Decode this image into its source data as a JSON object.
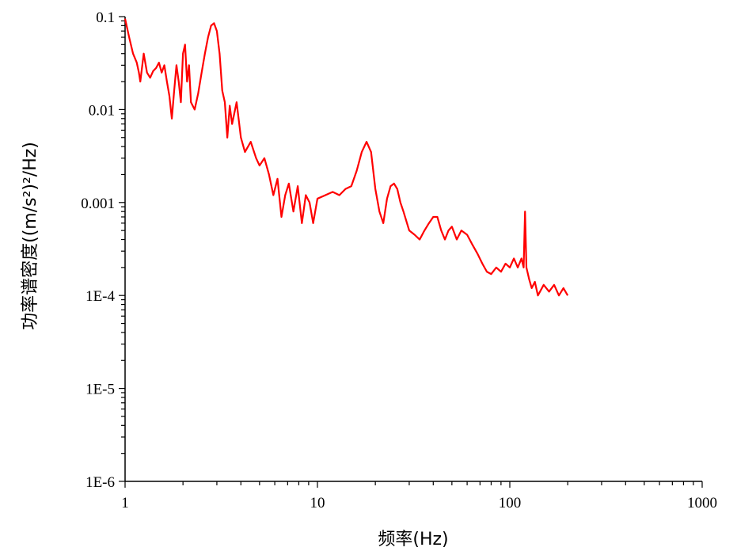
{
  "chart_data": {
    "type": "line",
    "xlabel": "频率(Hz)",
    "ylabel": "功率谱密度((m/s²)²/Hz)",
    "xscale": "log",
    "yscale": "log",
    "xlim": [
      1,
      1000
    ],
    "ylim": [
      1e-06,
      0.1
    ],
    "grid": false,
    "x_ticks": [
      {
        "value": 1,
        "label": "1"
      },
      {
        "value": 10,
        "label": "10"
      },
      {
        "value": 100,
        "label": "100"
      },
      {
        "value": 1000,
        "label": "1000"
      }
    ],
    "y_ticks": [
      {
        "value": 0.1,
        "label": "0.1"
      },
      {
        "value": 0.01,
        "label": "0.01"
      },
      {
        "value": 0.001,
        "label": "0.001"
      },
      {
        "value": 0.0001,
        "label": "1E-4"
      },
      {
        "value": 1e-05,
        "label": "1E-5"
      },
      {
        "value": 1e-06,
        "label": "1E-6"
      }
    ],
    "series": [
      {
        "color": "#ff0000",
        "points": [
          [
            1.0,
            0.095
          ],
          [
            1.05,
            0.06
          ],
          [
            1.1,
            0.04
          ],
          [
            1.15,
            0.032
          ],
          [
            1.18,
            0.025
          ],
          [
            1.2,
            0.02
          ],
          [
            1.25,
            0.04
          ],
          [
            1.3,
            0.025
          ],
          [
            1.35,
            0.022
          ],
          [
            1.4,
            0.026
          ],
          [
            1.45,
            0.028
          ],
          [
            1.5,
            0.032
          ],
          [
            1.55,
            0.025
          ],
          [
            1.6,
            0.03
          ],
          [
            1.65,
            0.02
          ],
          [
            1.7,
            0.014
          ],
          [
            1.75,
            0.008
          ],
          [
            1.8,
            0.016
          ],
          [
            1.85,
            0.03
          ],
          [
            1.9,
            0.02
          ],
          [
            1.95,
            0.012
          ],
          [
            2.0,
            0.04
          ],
          [
            2.05,
            0.05
          ],
          [
            2.1,
            0.02
          ],
          [
            2.15,
            0.03
          ],
          [
            2.2,
            0.012
          ],
          [
            2.3,
            0.01
          ],
          [
            2.4,
            0.015
          ],
          [
            2.5,
            0.025
          ],
          [
            2.6,
            0.04
          ],
          [
            2.7,
            0.06
          ],
          [
            2.8,
            0.08
          ],
          [
            2.9,
            0.085
          ],
          [
            3.0,
            0.07
          ],
          [
            3.1,
            0.04
          ],
          [
            3.2,
            0.016
          ],
          [
            3.3,
            0.012
          ],
          [
            3.4,
            0.005
          ],
          [
            3.5,
            0.011
          ],
          [
            3.6,
            0.007
          ],
          [
            3.8,
            0.012
          ],
          [
            4.0,
            0.005
          ],
          [
            4.2,
            0.0035
          ],
          [
            4.5,
            0.0045
          ],
          [
            4.8,
            0.003
          ],
          [
            5.0,
            0.0025
          ],
          [
            5.3,
            0.003
          ],
          [
            5.6,
            0.002
          ],
          [
            5.9,
            0.0012
          ],
          [
            6.2,
            0.0018
          ],
          [
            6.5,
            0.0007
          ],
          [
            6.8,
            0.0012
          ],
          [
            7.1,
            0.0016
          ],
          [
            7.5,
            0.0008
          ],
          [
            7.9,
            0.0015
          ],
          [
            8.3,
            0.0006
          ],
          [
            8.7,
            0.0012
          ],
          [
            9.1,
            0.001
          ],
          [
            9.5,
            0.0006
          ],
          [
            10.0,
            0.0011
          ],
          [
            11.0,
            0.0012
          ],
          [
            12.0,
            0.0013
          ],
          [
            13.0,
            0.0012
          ],
          [
            14.0,
            0.0014
          ],
          [
            15.0,
            0.0015
          ],
          [
            16.0,
            0.0022
          ],
          [
            17.0,
            0.0035
          ],
          [
            18.0,
            0.0045
          ],
          [
            19.0,
            0.0035
          ],
          [
            20.0,
            0.0014
          ],
          [
            21.0,
            0.0008
          ],
          [
            22.0,
            0.0006
          ],
          [
            23.0,
            0.0011
          ],
          [
            24.0,
            0.0015
          ],
          [
            25.0,
            0.0016
          ],
          [
            26.0,
            0.0014
          ],
          [
            27.0,
            0.001
          ],
          [
            28.0,
            0.0008
          ],
          [
            30.0,
            0.0005
          ],
          [
            32.0,
            0.00045
          ],
          [
            34.0,
            0.0004
          ],
          [
            36.0,
            0.0005
          ],
          [
            38.0,
            0.0006
          ],
          [
            40.0,
            0.0007
          ],
          [
            42.0,
            0.0007
          ],
          [
            44.0,
            0.0005
          ],
          [
            46.0,
            0.0004
          ],
          [
            48.0,
            0.0005
          ],
          [
            50.0,
            0.00055
          ],
          [
            53.0,
            0.0004
          ],
          [
            56.0,
            0.0005
          ],
          [
            60.0,
            0.00045
          ],
          [
            64.0,
            0.00035
          ],
          [
            68.0,
            0.00028
          ],
          [
            72.0,
            0.00022
          ],
          [
            76.0,
            0.00018
          ],
          [
            80.0,
            0.00017
          ],
          [
            85.0,
            0.0002
          ],
          [
            90.0,
            0.00018
          ],
          [
            95.0,
            0.00022
          ],
          [
            100.0,
            0.0002
          ],
          [
            105.0,
            0.00025
          ],
          [
            110.0,
            0.0002
          ],
          [
            115.0,
            0.00025
          ],
          [
            118.0,
            0.0002
          ],
          [
            120.0,
            0.0008
          ],
          [
            122.0,
            0.0002
          ],
          [
            126.0,
            0.00015
          ],
          [
            130.0,
            0.00012
          ],
          [
            135.0,
            0.00014
          ],
          [
            140.0,
            0.0001
          ],
          [
            150.0,
            0.00013
          ],
          [
            160.0,
            0.00011
          ],
          [
            170.0,
            0.00013
          ],
          [
            180.0,
            0.0001
          ],
          [
            190.0,
            0.00012
          ],
          [
            200.0,
            0.0001
          ]
        ]
      }
    ]
  }
}
